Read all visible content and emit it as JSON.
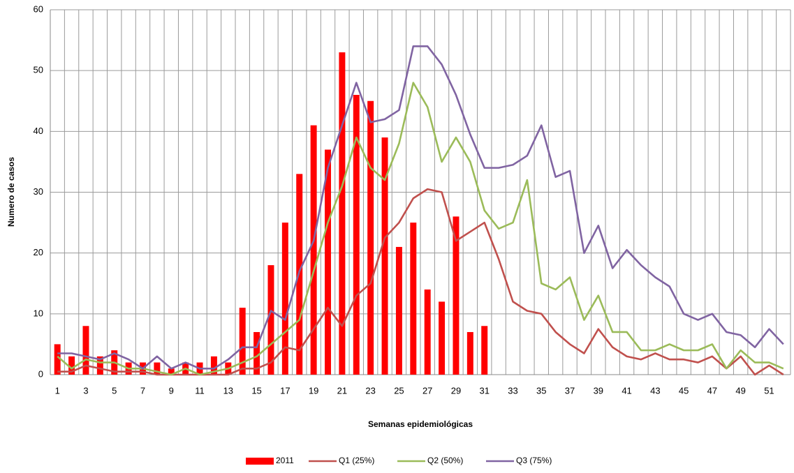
{
  "chart_data": {
    "type": "combo",
    "x_label": "Semanas epidemiológicas",
    "y_label": "Numero de casos",
    "categories": [
      "1",
      null,
      "3",
      null,
      "5",
      null,
      "7",
      null,
      "9",
      null,
      "11",
      null,
      "13",
      null,
      "15",
      null,
      "17",
      null,
      "19",
      null,
      "21",
      null,
      "23",
      null,
      "25",
      null,
      "27",
      null,
      "29",
      null,
      "31",
      null,
      "33",
      null,
      "35",
      null,
      "37",
      null,
      "39",
      null,
      "41",
      null,
      "43",
      null,
      "45",
      null,
      "47",
      null,
      "49",
      null,
      "51",
      null
    ],
    "ylim": [
      0,
      60
    ],
    "yticks": [
      0,
      10,
      20,
      30,
      40,
      50,
      60
    ],
    "grid": true,
    "legend": "bottom",
    "series": [
      {
        "name": "2011",
        "type": "bar",
        "color": "#ff0000",
        "values": [
          5,
          3,
          8,
          3,
          4,
          2,
          2,
          2,
          1,
          2,
          2,
          3,
          2,
          11,
          7,
          18,
          25,
          33,
          41,
          37,
          53,
          46,
          45,
          39,
          21,
          25,
          14,
          12,
          26,
          7,
          8,
          null,
          null,
          null,
          null,
          null,
          null,
          null,
          null,
          null,
          null,
          null,
          null,
          null,
          null,
          null,
          null,
          null,
          null,
          null,
          null,
          null
        ]
      },
      {
        "name": "Q1 (25%)",
        "type": "line",
        "color": "#c0504d",
        "values": [
          0.5,
          0.5,
          1.5,
          1,
          0.5,
          0.5,
          0.5,
          0,
          0,
          0,
          0,
          0,
          0,
          1,
          1,
          2,
          4.5,
          4,
          7.5,
          11,
          8,
          13,
          15,
          22.5,
          25,
          29,
          30.5,
          30,
          22,
          23.5,
          25,
          19,
          12,
          10.5,
          10,
          7,
          5,
          3.5,
          7.5,
          4.5,
          3,
          2.5,
          3.5,
          2.5,
          2.5,
          2,
          3,
          1,
          3,
          0,
          1.5,
          0
        ]
      },
      {
        "name": "Q2 (50%)",
        "type": "line",
        "color": "#9bbb59",
        "values": [
          3,
          1,
          2.5,
          2,
          2,
          1,
          1,
          0.5,
          0,
          1,
          0,
          0.5,
          1,
          2,
          3,
          5,
          7,
          9,
          17,
          25,
          31,
          39,
          34,
          32,
          38,
          48,
          44,
          35,
          39,
          35,
          27,
          24,
          25,
          32,
          15,
          14,
          16,
          9,
          13,
          7,
          7,
          4,
          4,
          5,
          4,
          4,
          5,
          1,
          4,
          2,
          2,
          1
        ]
      },
      {
        "name": "Q3 (75%)",
        "type": "line",
        "color": "#8064a2",
        "values": [
          3.5,
          3.5,
          3,
          2.5,
          3.5,
          2.5,
          1,
          3,
          1,
          2,
          1,
          1,
          2.5,
          4.5,
          4.5,
          10.5,
          9,
          17,
          22,
          34,
          41,
          48,
          41.5,
          42,
          43.5,
          54,
          54,
          51,
          46,
          39.5,
          34,
          34,
          34.5,
          36,
          41,
          32.5,
          33.5,
          20,
          24.5,
          17.5,
          20.5,
          18,
          16,
          14.5,
          10,
          9,
          10,
          7,
          6.5,
          4.5,
          7.5,
          5
        ]
      }
    ]
  }
}
